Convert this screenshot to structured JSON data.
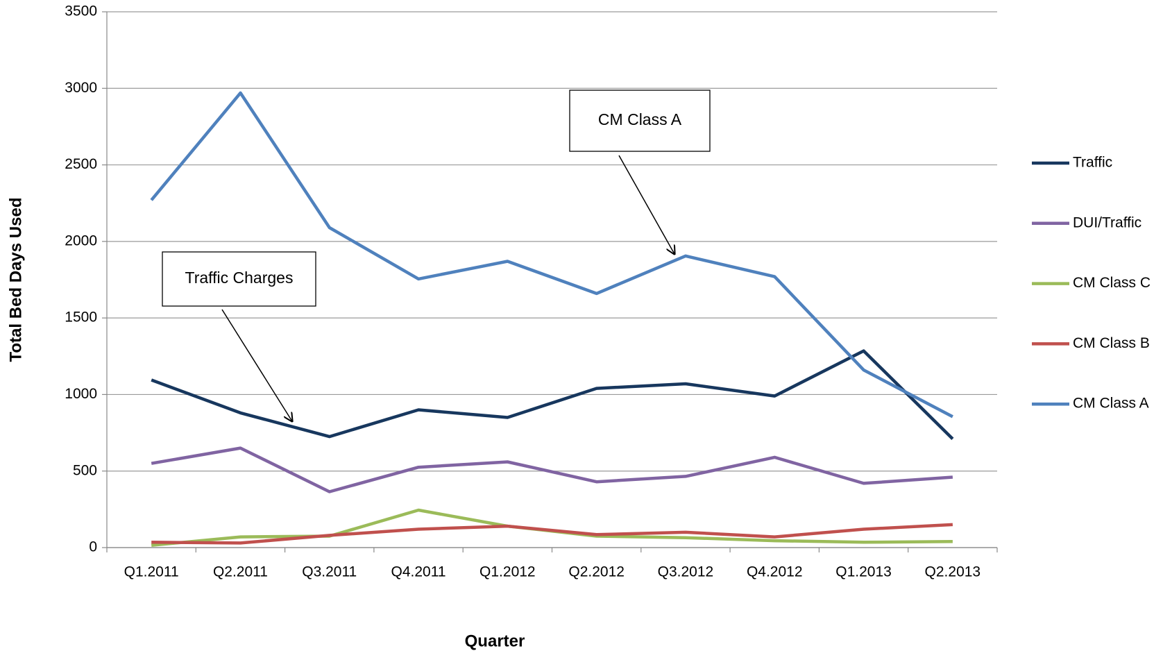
{
  "chart_data": {
    "type": "line",
    "x_label": "Quarter",
    "y_label": "Total Bed Days Used",
    "categories": [
      "Q1.2011",
      "Q2.2011",
      "Q3.2011",
      "Q4.2011",
      "Q1.2012",
      "Q2.2012",
      "Q3.2012",
      "Q4.2012",
      "Q1.2013",
      "Q2.2013"
    ],
    "series": [
      {
        "name": "Traffic",
        "color": "#17375e",
        "values": [
          1095,
          880,
          725,
          900,
          850,
          1040,
          1070,
          990,
          1285,
          710
        ]
      },
      {
        "name": "DUI/Traffic",
        "color": "#8064a2",
        "values": [
          550,
          650,
          365,
          525,
          560,
          430,
          465,
          590,
          420,
          460
        ]
      },
      {
        "name": "CM Class C",
        "color": "#9bbb59",
        "values": [
          15,
          70,
          75,
          245,
          140,
          75,
          65,
          45,
          35,
          40
        ]
      },
      {
        "name": "CM Class B",
        "color": "#c0504d",
        "values": [
          35,
          30,
          80,
          120,
          140,
          85,
          100,
          70,
          120,
          150
        ]
      },
      {
        "name": "CM Class A",
        "color": "#4f81bd",
        "values": [
          2270,
          2970,
          2090,
          1755,
          1870,
          1660,
          1905,
          1770,
          1160,
          855
        ]
      }
    ],
    "ylim": [
      0,
      3500
    ],
    "yticks": [
      0,
      500,
      1000,
      1500,
      2000,
      2500,
      3000,
      3500
    ],
    "grid": true,
    "legend": "right",
    "annotations": [
      {
        "text": "CM Class A"
      },
      {
        "text": "Traffic Charges"
      }
    ]
  }
}
